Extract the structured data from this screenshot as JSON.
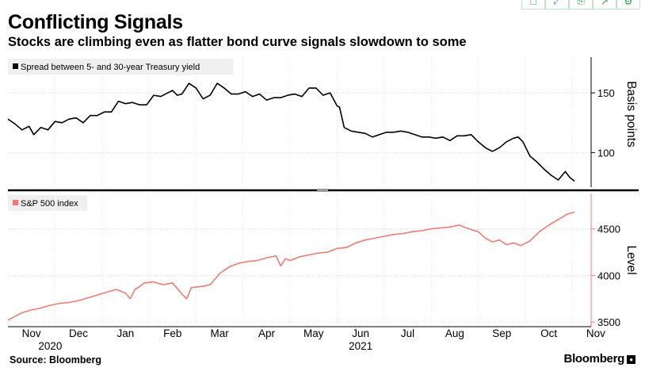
{
  "header": {
    "title": "Conflicting Signals",
    "subtitle": "Stocks are climbing even as flatter bond curve signals slowdown to some"
  },
  "toolbar": {
    "icons": [
      "save-icon",
      "expand-icon",
      "print-icon",
      "share-icon",
      "settings-icon"
    ]
  },
  "footer": {
    "source": "Source: Bloomberg",
    "brand": "Bloomberg"
  },
  "chart_data": [
    {
      "type": "line",
      "title": "Spread between 5- and 30-year Treasury yield",
      "ylabel": "Basis points",
      "ylim": [
        71,
        180
      ],
      "yticks": [
        100,
        150
      ],
      "color": "#000000",
      "x_range": [
        0,
        12.4
      ],
      "series": [
        {
          "name": "Spread between 5- and 30-year Treasury yield",
          "x": [
            0,
            0.15,
            0.3,
            0.45,
            0.55,
            0.7,
            0.85,
            1.0,
            1.15,
            1.3,
            1.45,
            1.6,
            1.75,
            1.9,
            2.05,
            2.2,
            2.35,
            2.5,
            2.65,
            2.8,
            2.95,
            3.1,
            3.25,
            3.4,
            3.5,
            3.6,
            3.7,
            3.85,
            4.0,
            4.15,
            4.3,
            4.45,
            4.6,
            4.75,
            4.9,
            5.05,
            5.2,
            5.35,
            5.5,
            5.65,
            5.8,
            5.95,
            6.1,
            6.25,
            6.4,
            6.55,
            6.7,
            6.85,
            7.0,
            7.05,
            7.15,
            7.3,
            7.45,
            7.6,
            7.75,
            7.9,
            8.05,
            8.2,
            8.35,
            8.5,
            8.65,
            8.8,
            8.95,
            9.1,
            9.25,
            9.4,
            9.55,
            9.7,
            9.85,
            10.0,
            10.15,
            10.3,
            10.45,
            10.6,
            10.75,
            10.85,
            10.95,
            11.1,
            11.25,
            11.4,
            11.55,
            11.7,
            11.85,
            11.95,
            12.05
          ],
          "y": [
            128,
            124,
            119,
            122,
            115,
            121,
            119,
            126,
            125,
            128,
            129,
            125,
            131,
            131,
            134,
            134,
            143,
            141,
            142,
            140,
            140,
            148,
            147,
            150,
            152,
            148,
            149,
            158,
            154,
            145,
            148,
            158,
            154,
            149,
            149,
            151,
            147,
            149,
            144,
            146,
            146,
            148,
            149,
            147,
            154,
            154,
            148,
            150,
            139,
            138,
            121,
            118,
            117,
            116,
            113,
            115,
            117,
            117,
            118,
            117,
            115,
            113,
            113,
            112,
            113,
            110,
            114,
            114,
            115,
            109,
            104,
            101,
            104,
            109,
            112,
            113,
            109,
            97,
            92,
            86,
            81,
            77,
            84,
            79,
            76
          ]
        }
      ]
    },
    {
      "type": "line",
      "title": "S&P 500 index",
      "ylabel": "Level",
      "ylim": [
        3450,
        4880
      ],
      "yticks": [
        3500,
        4000,
        4500
      ],
      "color": "#f07b72",
      "x_range": [
        0,
        12.4
      ],
      "series": [
        {
          "name": "S&P 500 index",
          "x": [
            0,
            0.15,
            0.3,
            0.5,
            0.7,
            0.9,
            1.1,
            1.3,
            1.5,
            1.7,
            1.9,
            2.1,
            2.3,
            2.5,
            2.6,
            2.7,
            2.8,
            2.9,
            3.1,
            3.3,
            3.5,
            3.7,
            3.8,
            3.9,
            4.1,
            4.3,
            4.5,
            4.7,
            4.9,
            5.1,
            5.3,
            5.5,
            5.7,
            5.8,
            5.9,
            6.0,
            6.2,
            6.4,
            6.6,
            6.8,
            7.0,
            7.2,
            7.4,
            7.6,
            7.8,
            8.0,
            8.2,
            8.4,
            8.6,
            8.8,
            9.0,
            9.2,
            9.4,
            9.6,
            9.8,
            10.0,
            10.15,
            10.3,
            10.45,
            10.6,
            10.75,
            10.9,
            11.1,
            11.3,
            11.5,
            11.7,
            11.9,
            12.05
          ],
          "y": [
            3520,
            3560,
            3600,
            3630,
            3650,
            3680,
            3700,
            3710,
            3730,
            3760,
            3790,
            3820,
            3850,
            3810,
            3750,
            3850,
            3880,
            3920,
            3930,
            3900,
            3920,
            3800,
            3750,
            3870,
            3880,
            3900,
            4020,
            4090,
            4130,
            4150,
            4160,
            4190,
            4210,
            4100,
            4180,
            4160,
            4200,
            4220,
            4240,
            4250,
            4290,
            4300,
            4350,
            4380,
            4400,
            4420,
            4440,
            4450,
            4470,
            4480,
            4500,
            4510,
            4520,
            4540,
            4500,
            4470,
            4400,
            4360,
            4380,
            4330,
            4350,
            4320,
            4370,
            4470,
            4540,
            4600,
            4660,
            4680
          ]
        }
      ]
    }
  ],
  "x_axis": {
    "months": [
      {
        "label": "Nov",
        "x": 0.5
      },
      {
        "label": "Dec",
        "x": 1.5
      },
      {
        "label": "Jan",
        "x": 2.5
      },
      {
        "label": "Feb",
        "x": 3.5
      },
      {
        "label": "Mar",
        "x": 4.5
      },
      {
        "label": "Apr",
        "x": 5.5
      },
      {
        "label": "May",
        "x": 6.5
      },
      {
        "label": "Jun",
        "x": 7.5
      },
      {
        "label": "Jul",
        "x": 8.5
      },
      {
        "label": "Aug",
        "x": 9.5
      },
      {
        "label": "Sep",
        "x": 10.5
      },
      {
        "label": "Oct",
        "x": 11.5
      },
      {
        "label": "Nov",
        "x": 12.5
      }
    ],
    "years": [
      {
        "label": "2020",
        "x": 0.9
      },
      {
        "label": "2021",
        "x": 7.5
      }
    ]
  }
}
